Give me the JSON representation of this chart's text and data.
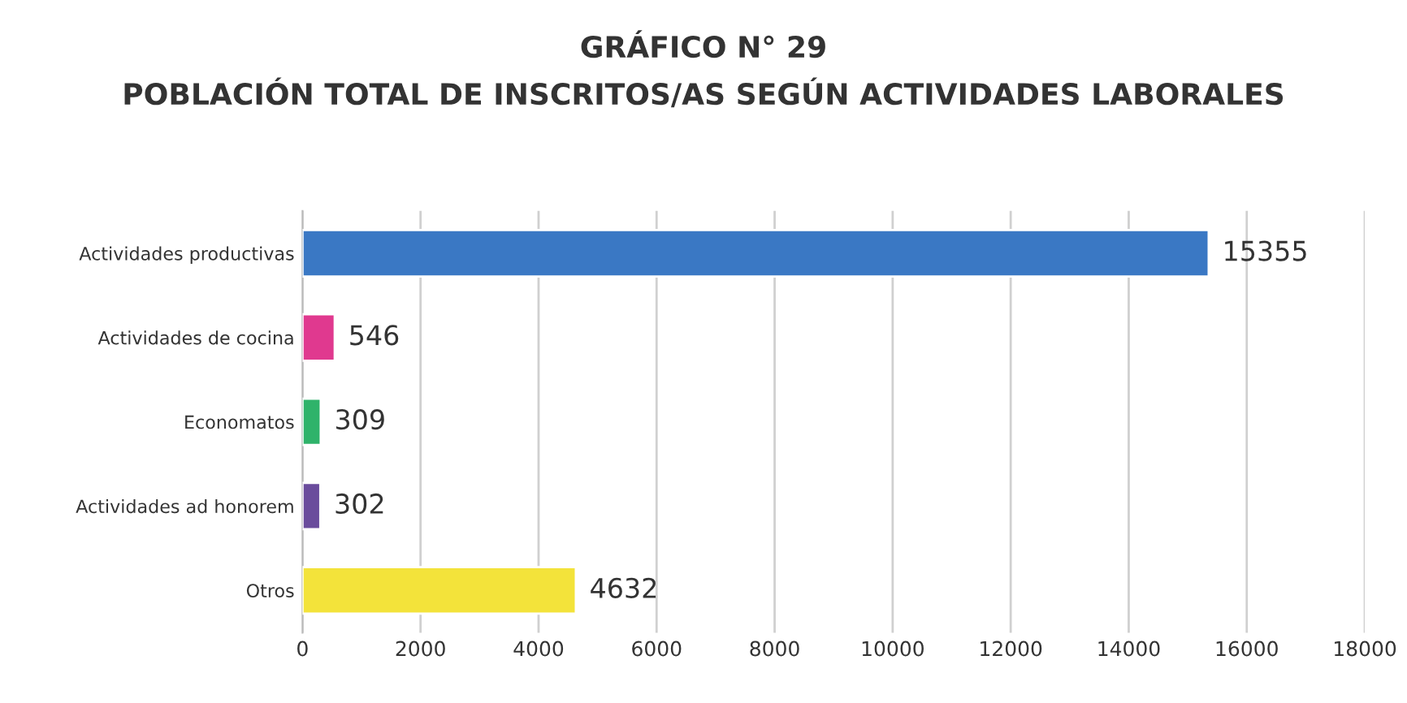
{
  "chart_data": {
    "type": "bar",
    "orientation": "horizontal",
    "title": "GRÁFICO N° 29",
    "subtitle": "POBLACIÓN TOTAL DE INSCRITOS/AS SEGÚN ACTIVIDADES LABORALES",
    "categories": [
      "Actividades productivas",
      "Actividades de cocina",
      "Economatos",
      "Actividades ad honorem",
      "Otros"
    ],
    "values": [
      15355,
      546,
      309,
      302,
      4632
    ],
    "colors": [
      "#3a78c4",
      "#e0398f",
      "#2fb36a",
      "#6a4c9c",
      "#f3e33a"
    ],
    "xlim": [
      0,
      18000
    ],
    "xticks": [
      0,
      2000,
      4000,
      6000,
      8000,
      10000,
      12000,
      14000,
      16000,
      18000
    ],
    "grid": "x",
    "data_labels": true
  }
}
